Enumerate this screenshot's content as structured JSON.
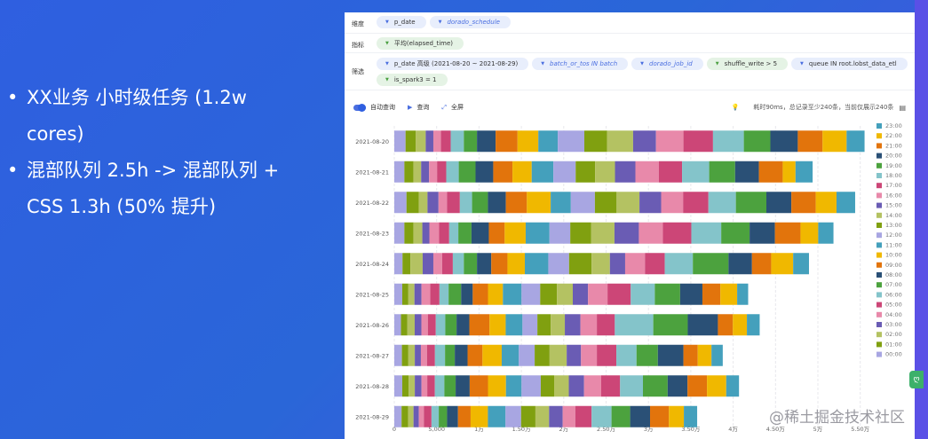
{
  "slide": {
    "bullets": [
      "XX业务 小时级任务 (1.2w cores)",
      "混部队列 2.5h -> 混部队列 + CSS 1.3h (50% 提升)"
    ]
  },
  "filters": {
    "dimension": {
      "label": "维度",
      "chips": [
        {
          "text": "p_date",
          "style": "plain"
        },
        {
          "text": "dorado_schedule",
          "style": "blue"
        }
      ]
    },
    "metric": {
      "label": "指标",
      "chips": [
        {
          "text": "平均(elapsed_time)",
          "style": "green"
        }
      ]
    },
    "filter": {
      "label": "筛选",
      "chips": [
        {
          "text": "p_date 高级 (2021-08-20 ~ 2021-08-29)",
          "style": "plain"
        },
        {
          "text": "batch_or_tos IN batch",
          "style": "blue"
        },
        {
          "text": "dorado_job_id",
          "style": "blue"
        },
        {
          "text": "shuffle_write > 5",
          "style": "green"
        },
        {
          "text": "queue IN root.lobst_data_etl",
          "style": "plain"
        },
        {
          "text": "is_spark3 = 1",
          "style": "green"
        }
      ]
    }
  },
  "toolbar": {
    "auto_query": "自动查询",
    "query": "查询",
    "fullscreen": "全屏",
    "status": "耗时90ms，总记录至少240条，当前仅展示240条",
    "auto_query_on": true
  },
  "watermark": "@稀土掘金技术社区",
  "float_button": "ღ",
  "chart_data": {
    "type": "bar",
    "orientation": "horizontal",
    "stacked": true,
    "categories": [
      "2021-08-20",
      "2021-08-21",
      "2021-08-22",
      "2021-08-23",
      "2021-08-24",
      "2021-08-25",
      "2021-08-26",
      "2021-08-27",
      "2021-08-28",
      "2021-08-29"
    ],
    "xlim": [
      0,
      55000
    ],
    "xticks": [
      0,
      5000,
      10000,
      15000,
      20000,
      25000,
      30000,
      35000,
      40000,
      45000,
      50000,
      55000
    ],
    "xtick_labels": [
      "0",
      "5,000",
      "1万",
      "1.50万",
      "2万",
      "2.50万",
      "3万",
      "3.50万",
      "4万",
      "4.50万",
      "5万",
      "5.50万"
    ],
    "grid": "vertical dashed",
    "legend": "right",
    "series_names": [
      "00:00",
      "01:00",
      "02:00",
      "03:00",
      "04:00",
      "05:00",
      "06:00",
      "07:00",
      "08:00",
      "09:00",
      "10:00",
      "11:00",
      "12:00",
      "13:00",
      "14:00",
      "15:00",
      "16:00",
      "17:00",
      "18:00",
      "19:00",
      "20:00",
      "21:00",
      "22:00",
      "23:00"
    ],
    "colors": [
      "#a8a6e2",
      "#80a010",
      "#b4c262",
      "#6a5cb4",
      "#e889aa",
      "#cc4677",
      "#84c4ca",
      "#4ca23e",
      "#2a5076",
      "#e2740c",
      "#f0b800",
      "#44a0bc",
      "#a8a6e2",
      "#80a010",
      "#b4c262",
      "#6a5cb4",
      "#e889aa",
      "#cc4677",
      "#84c4ca",
      "#4ca23e",
      "#2a5076",
      "#e2740c",
      "#f0b800",
      "#44a0bc"
    ],
    "values_by_category": [
      [
        1330,
        1190,
        1190,
        900,
        900,
        1150,
        1550,
        1550,
        2200,
        2590,
        2450,
        2300,
        3130,
        2700,
        3060,
        2700,
        3240,
        3490,
        3640,
        3130,
        3240,
        2920,
        2840,
        2120
      ],
      [
        1190,
        1080,
        900,
        940,
        940,
        1080,
        1480,
        1980,
        2090,
        2270,
        2270,
        2560,
        2630,
        2300,
        2340,
        2410,
        2770,
        2740,
        3200,
        3060,
        2810,
        2810,
        1510,
        2020
      ],
      [
        1440,
        1440,
        1040,
        1300,
        1010,
        1510,
        1440,
        1870,
        2120,
        2480,
        2810,
        2380,
        2840,
        2560,
        2700,
        2560,
        2590,
        2990,
        3240,
        3600,
        2950,
        2880,
        2450,
        2200
      ],
      [
        1190,
        1080,
        1040,
        830,
        1150,
        1190,
        1080,
        1550,
        2050,
        1870,
        2480,
        2810,
        2450,
        2480,
        2740,
        2880,
        2840,
        3350,
        3530,
        3350,
        2990,
        3020,
        2090,
        1800
      ],
      [
        970,
        940,
        1440,
        1260,
        1040,
        1260,
        1300,
        1550,
        1690,
        1910,
        2050,
        2770,
        2450,
        2660,
        2160,
        1800,
        2340,
        2340,
        3310,
        4210,
        2770,
        2270,
        2590,
        1870
      ],
      [
        940,
        720,
        720,
        830,
        1040,
        1080,
        1080,
        1480,
        1370,
        1800,
        1760,
        2200,
        2200,
        1980,
        1870,
        1800,
        2300,
        2740,
        2840,
        2990,
        2630,
        2120,
        1980,
        1300
      ],
      [
        790,
        760,
        860,
        790,
        760,
        940,
        1120,
        1330,
        1510,
        2380,
        1910,
        1980,
        1760,
        1580,
        1660,
        1840,
        1940,
        2120,
        4540,
        4070,
        3560,
        1760,
        1660,
        1510
      ],
      [
        900,
        760,
        760,
        720,
        720,
        940,
        1190,
        1150,
        1510,
        1760,
        2270,
        2020,
        1870,
        1760,
        2020,
        1690,
        1870,
        2300,
        2380,
        2520,
        3020,
        1690,
        1620,
        1330
      ],
      [
        940,
        760,
        720,
        790,
        680,
        900,
        1120,
        1330,
        1660,
        2160,
        2120,
        1840,
        2270,
        1580,
        1730,
        1800,
        2020,
        2230,
        2700,
        2920,
        2340,
        2300,
        2270,
        1510
      ],
      [
        860,
        780,
        630,
        630,
        590,
        900,
        860,
        980,
        1290,
        1490,
        2040,
        2080,
        1840,
        1690,
        1610,
        1610,
        1490,
        1920,
        2350,
        2200,
        2350,
        2230,
        1760,
        1570
      ]
    ]
  }
}
